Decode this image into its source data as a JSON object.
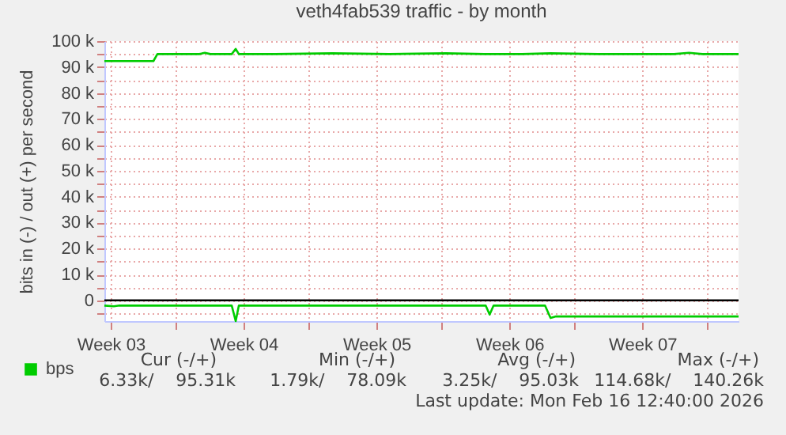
{
  "chart_data": {
    "type": "line",
    "title": "veth4fab539 traffic - by month",
    "ylabel": "bits in (-) / out (+) per second",
    "xlim": [
      "2026-01-14T03:00",
      "2026-02-16T12:40"
    ],
    "ylim": [
      -8000,
      100000
    ],
    "xticks": [
      {
        "value": "2026-01-14T11:00",
        "label": "Week 03"
      },
      {
        "value": "2026-01-17T21:00",
        "label": null
      },
      {
        "value": "2026-01-21T11:00",
        "label": "Week 04"
      },
      {
        "value": "2026-01-24T21:00",
        "label": null
      },
      {
        "value": "2026-01-28T11:00",
        "label": "Week 05"
      },
      {
        "value": "2026-01-31T21:00",
        "label": null
      },
      {
        "value": "2026-02-04T11:00",
        "label": "Week 06"
      },
      {
        "value": "2026-02-07T21:00",
        "label": null
      },
      {
        "value": "2026-02-11T11:00",
        "label": "Week 07"
      },
      {
        "value": "2026-02-14T21:00",
        "label": null
      }
    ],
    "yticks": [
      {
        "value": -5000,
        "label": null
      },
      0,
      {
        "value": 5000,
        "label": null
      },
      {
        "value": 10000,
        "label": "10 k"
      },
      {
        "value": 15000,
        "label": null
      },
      {
        "value": 20000,
        "label": "20 k"
      },
      {
        "value": 25000,
        "label": null
      },
      {
        "value": 30000,
        "label": "30 k"
      },
      {
        "value": 35000,
        "label": null
      },
      {
        "value": 40000,
        "label": "40 k"
      },
      {
        "value": 45000,
        "label": null
      },
      {
        "value": 50000,
        "label": "50 k"
      },
      {
        "value": 55000,
        "label": null
      },
      {
        "value": 60000,
        "label": "60 k"
      },
      {
        "value": 65000,
        "label": null
      },
      {
        "value": 70000,
        "label": "70 k"
      },
      {
        "value": 75000,
        "label": null
      },
      {
        "value": 80000,
        "label": "80 k"
      },
      {
        "value": 85000,
        "label": null
      },
      {
        "value": 90000,
        "label": "90 k"
      },
      {
        "value": 95000,
        "label": null
      },
      {
        "value": 100000,
        "label": "100 k"
      }
    ],
    "grid": true,
    "legend": "bottom left",
    "ref_lines": [
      {
        "axis": "y",
        "value": 0,
        "color": "#000000"
      }
    ],
    "series": [
      {
        "name": "bps",
        "color": "#00cc00",
        "x": [
          "2026-01-14T03:00",
          "2026-01-16T17:00",
          "2026-01-16T22:00",
          "2026-01-19T03:00",
          "2026-01-19T10:00",
          "2026-01-19T17:00",
          "2026-01-20T20:00",
          "2026-01-21T01:00",
          "2026-01-21T05:00",
          "2026-01-23T03:00",
          "2026-01-26T03:00",
          "2026-01-29T03:00",
          "2026-02-01T03:00",
          "2026-02-03T03:00",
          "2026-02-05T03:00",
          "2026-02-06T15:00",
          "2026-02-09T03:00",
          "2026-02-11T03:00",
          "2026-02-13T03:00",
          "2026-02-13T22:00",
          "2026-02-14T15:00",
          "2026-02-16T12:40"
        ],
        "values": [
          92300,
          92300,
          95000,
          95000,
          95500,
          95000,
          95000,
          97000,
          95000,
          95000,
          95300,
          95000,
          95300,
          95000,
          95000,
          95300,
          95000,
          95000,
          95000,
          95500,
          95000,
          95000
        ]
      },
      {
        "color": "#00cc00",
        "x": [
          "2026-01-14T03:00",
          "2026-01-14T15:00",
          "2026-01-14T22:00",
          "2026-01-17T03:00",
          "2026-01-20T20:00",
          "2026-01-21T01:00",
          "2026-01-21T05:00",
          "2026-01-26T03:00",
          "2026-02-03T05:00",
          "2026-02-03T10:00",
          "2026-02-03T15:00",
          "2026-02-06T08:00",
          "2026-02-06T15:00",
          "2026-02-06T22:00",
          "2026-02-16T12:40"
        ],
        "values": [
          -2000,
          -2300,
          -2000,
          -2000,
          -2000,
          -8000,
          -2000,
          -2000,
          -2000,
          -5500,
          -2000,
          -2000,
          -6800,
          -6200,
          -6200
        ]
      }
    ],
    "annotations": [
      "Cur (-/+)",
      "Min (-/+)",
      "Avg (-/+)",
      "Max (-/+)",
      "6.33k/    95.31k",
      "1.79k/    78.09k",
      "3.25k/    95.03k",
      "114.68k/    140.26k",
      "Last update: Mon Feb 16 12:40:00 2026"
    ]
  }
}
